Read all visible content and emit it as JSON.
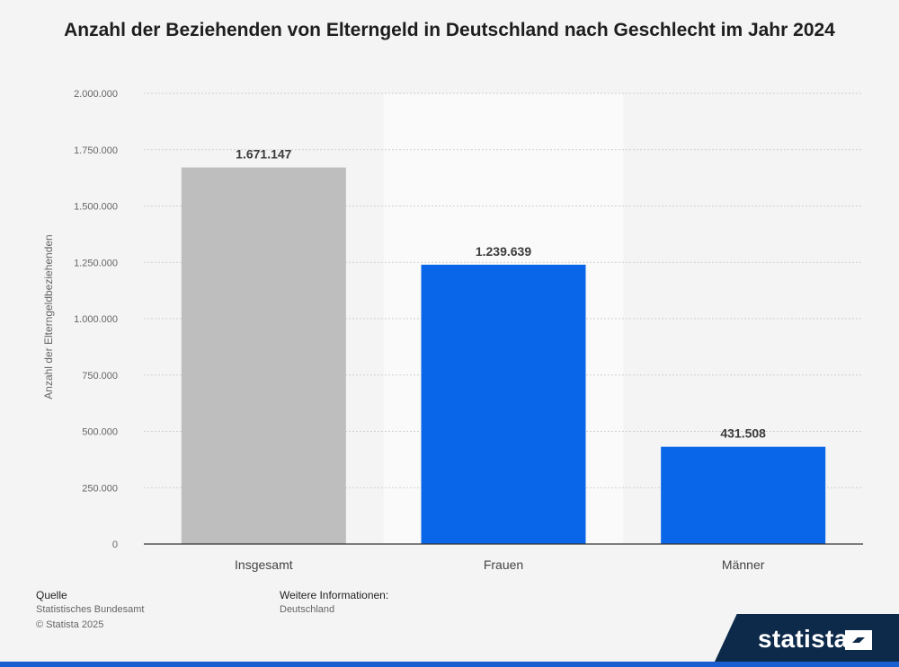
{
  "chart_data": {
    "type": "bar",
    "title": "Anzahl der Beziehenden von Elterngeld in Deutschland nach Geschlecht im Jahr 2024",
    "ylabel": "Anzahl der Elterngeldbeziehenden",
    "xlabel": "",
    "categories": [
      "Insgesamt",
      "Frauen",
      "Männer"
    ],
    "values": [
      1671147,
      1239639,
      431508
    ],
    "value_labels": [
      "1.671.147",
      "1.239.639",
      "431.508"
    ],
    "ylim": [
      0,
      2000000
    ],
    "yticks": [
      0,
      250000,
      500000,
      750000,
      1000000,
      1250000,
      1500000,
      1750000,
      2000000
    ],
    "ytick_labels": [
      "0",
      "250.000",
      "500.000",
      "750.000",
      "1.000.000",
      "1.250.000",
      "1.500.000",
      "1.750.000",
      "2.000.000"
    ],
    "bar_colors": [
      "#bebebe",
      "#0a66e8",
      "#0a66e8"
    ],
    "grid": true,
    "legend": "none"
  },
  "footer": {
    "source_label": "Quelle",
    "source_text": "Statistisches Bundesamt",
    "copyright": "© Statista 2025",
    "info_label": "Weitere Informationen:",
    "info_text": "Deutschland"
  },
  "brand": {
    "name": "statista",
    "logo_icon": "statista-logo-icon",
    "color": "#0d2a4a",
    "accent": "#1a5fcf"
  }
}
